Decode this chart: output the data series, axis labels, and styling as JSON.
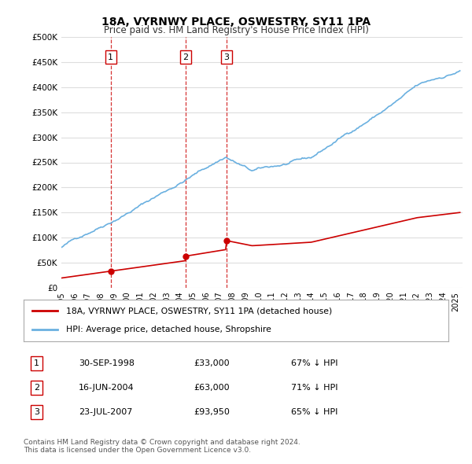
{
  "title": "18A, VYRNWY PLACE, OSWESTRY, SY11 1PA",
  "subtitle": "Price paid vs. HM Land Registry's House Price Index (HPI)",
  "hpi_color": "#6ab0e0",
  "price_color": "#cc0000",
  "dashed_color": "#cc0000",
  "background_color": "#ffffff",
  "grid_color": "#dddddd",
  "ylim": [
    0,
    500000
  ],
  "yticks": [
    0,
    50000,
    100000,
    150000,
    200000,
    250000,
    300000,
    350000,
    400000,
    450000,
    500000
  ],
  "xlim_start": 1995.0,
  "xlim_end": 2025.5,
  "sale_dates_decimal": [
    1998.75,
    2004.46,
    2007.55
  ],
  "sale_prices": [
    33000,
    63000,
    93950
  ],
  "sale_labels": [
    "1",
    "2",
    "3"
  ],
  "legend_label_price": "18A, VYRNWY PLACE, OSWESTRY, SY11 1PA (detached house)",
  "legend_label_hpi": "HPI: Average price, detached house, Shropshire",
  "table_rows": [
    [
      "1",
      "30-SEP-1998",
      "£33,000",
      "67% ↓ HPI"
    ],
    [
      "2",
      "16-JUN-2004",
      "£63,000",
      "71% ↓ HPI"
    ],
    [
      "3",
      "23-JUL-2007",
      "£93,950",
      "65% ↓ HPI"
    ]
  ],
  "footnote": "Contains HM Land Registry data © Crown copyright and database right 2024.\nThis data is licensed under the Open Government Licence v3.0."
}
